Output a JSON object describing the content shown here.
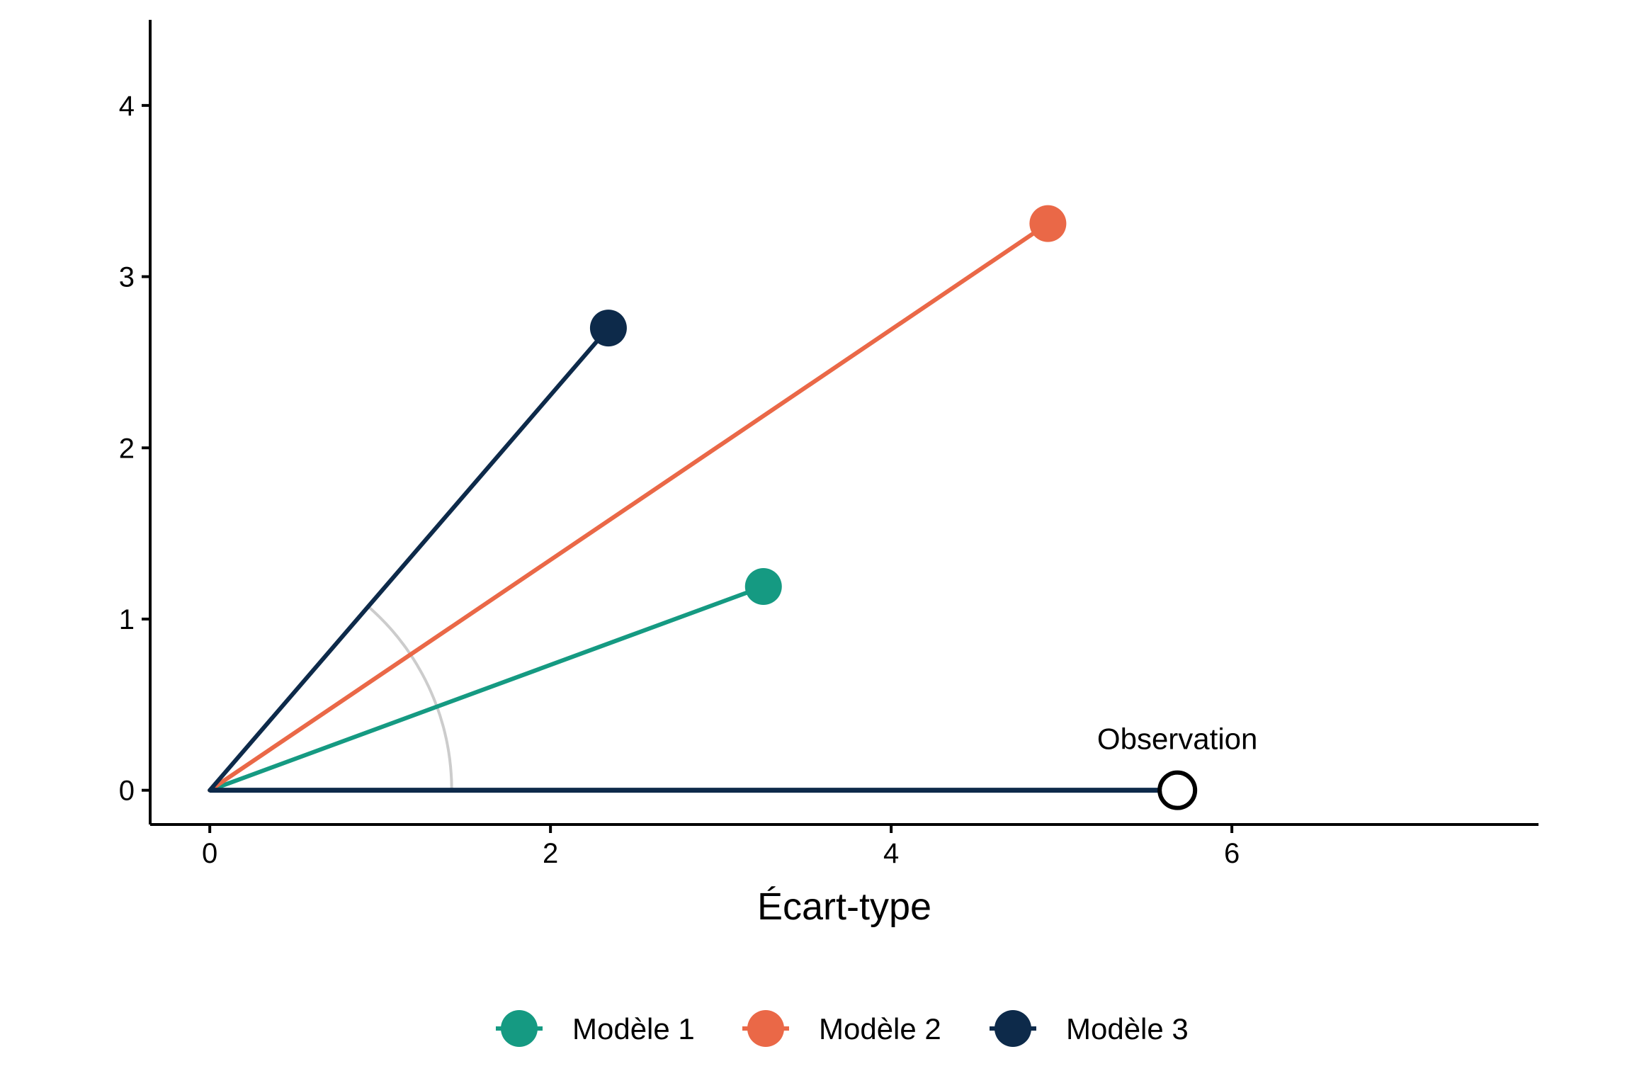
{
  "chart_data": {
    "type": "line",
    "xlabel": "Écart-type",
    "ylabel": "",
    "xlim": [
      -0.35,
      7.8
    ],
    "ylim": [
      -0.2,
      4.5
    ],
    "x_ticks": [
      "0",
      "2",
      "4",
      "6"
    ],
    "y_ticks": [
      "0",
      "1",
      "2",
      "3",
      "4"
    ],
    "grid": false,
    "legend_position": "bottom",
    "reference_arc_radius": 1.42,
    "reference_arc_color": "#cccccc",
    "observation": {
      "label": "Observation",
      "x": 5.68,
      "y": 0,
      "color": "#0d2a4a"
    },
    "series": [
      {
        "name": "Modèle 1",
        "x": 3.25,
        "y": 1.19,
        "color": "#159a82"
      },
      {
        "name": "Modèle 2",
        "x": 4.92,
        "y": 3.31,
        "color": "#ea6847"
      },
      {
        "name": "Modèle 3",
        "x": 2.34,
        "y": 2.7,
        "color": "#0d2a4a"
      }
    ]
  }
}
